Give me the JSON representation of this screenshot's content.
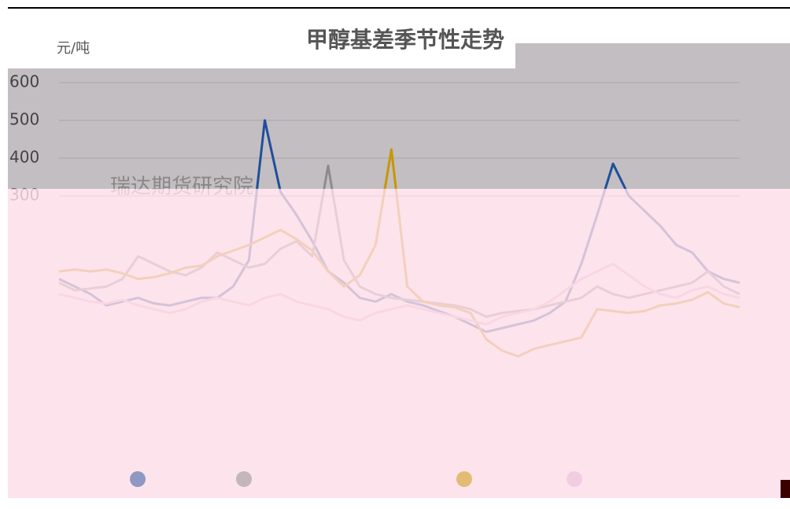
{
  "chart_data": {
    "type": "line",
    "title": "甲醇基差季节性走势",
    "y_label": "元/吨",
    "watermark": "瑞达期货研究院",
    "categories": [
      null,
      null,
      null,
      null,
      null,
      null,
      null,
      null,
      null,
      null,
      null,
      null,
      null,
      null,
      null,
      null,
      null,
      null,
      null,
      null,
      null,
      null,
      null,
      null,
      null,
      null,
      null,
      null,
      null,
      null,
      null,
      null,
      null,
      null,
      null,
      null,
      null,
      null,
      null,
      null,
      null,
      null,
      null,
      null
    ],
    "series": [
      {
        "color": "#1f4e9c",
        "values": [
          80,
          60,
          40,
          10,
          20,
          30,
          15,
          10,
          20,
          30,
          30,
          60,
          130,
          500,
          310,
          250,
          180,
          100,
          70,
          30,
          20,
          40,
          20,
          10,
          -5,
          -20,
          -40,
          -60,
          -50,
          -40,
          -30,
          -10,
          20,
          120,
          250,
          385,
          300,
          260,
          220,
          170,
          150,
          100,
          80,
          70
        ]
      },
      {
        "color": "#8c8c8c",
        "values": [
          70,
          50,
          55,
          60,
          80,
          140,
          120,
          100,
          90,
          110,
          150,
          130,
          110,
          120,
          160,
          180,
          140,
          380,
          130,
          60,
          40,
          30,
          25,
          20,
          15,
          10,
          0,
          -20,
          -10,
          -5,
          0,
          10,
          20,
          30,
          60,
          40,
          30,
          40,
          50,
          60,
          70,
          100,
          60,
          40
        ]
      },
      {
        "color": "#c89600",
        "values": [
          100,
          105,
          100,
          105,
          95,
          80,
          85,
          95,
          110,
          115,
          140,
          155,
          170,
          190,
          210,
          185,
          155,
          100,
          60,
          90,
          170,
          423,
          60,
          20,
          10,
          5,
          -10,
          -80,
          -110,
          -125,
          -105,
          -95,
          -85,
          -75,
          0,
          -5,
          -10,
          -5,
          10,
          15,
          25,
          45,
          15,
          5
        ]
      },
      {
        "color": "#e8b8d8",
        "values": [
          40,
          30,
          20,
          15,
          25,
          10,
          0,
          -10,
          0,
          20,
          30,
          20,
          10,
          30,
          40,
          20,
          10,
          0,
          -20,
          -30,
          -10,
          0,
          10,
          0,
          -10,
          -20,
          -30,
          -40,
          -20,
          -10,
          0,
          20,
          50,
          80,
          100,
          120,
          90,
          60,
          40,
          30,
          50,
          60,
          40,
          30
        ]
      }
    ],
    "ylim": [
      -200,
      600
    ],
    "yticks": [
      300,
      400,
      500,
      600
    ],
    "grid": true
  }
}
